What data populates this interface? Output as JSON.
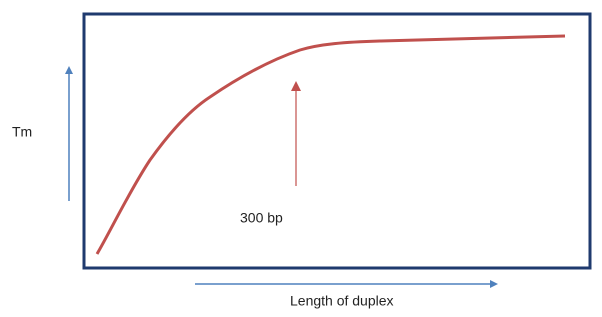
{
  "labels": {
    "y_axis": "Tm",
    "annotation": "300 bp",
    "x_axis": "Length of duplex"
  }
}
